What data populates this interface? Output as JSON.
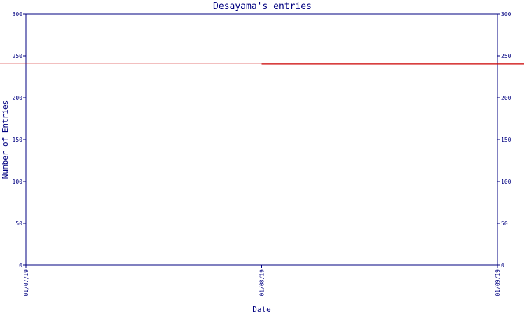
{
  "chart_data": {
    "type": "line",
    "title": "Desayama's entries",
    "xlabel": "Date",
    "ylabel": "Number of Entries",
    "x_ticks": [
      "01/07/19",
      "01/08/19",
      "01/09/19"
    ],
    "y_ticks": [
      0,
      50,
      100,
      150,
      200,
      250,
      300
    ],
    "ylim": [
      0,
      300
    ],
    "xlim": [
      "01/07/19",
      "01/09/19"
    ],
    "grid": false,
    "series": [
      {
        "color": "#cc0000",
        "points": [
          {
            "x": "01/08/19",
            "y": 240
          },
          {
            "x": "01/08/31",
            "y": 240
          },
          {
            "x": "01/08/31",
            "y": 241
          },
          {
            "x": "01/09/03",
            "y": 241
          }
        ]
      }
    ],
    "colors": {
      "axis": "#000080",
      "text": "#000080",
      "line": "#cc0000",
      "background": "#ffffff"
    }
  }
}
